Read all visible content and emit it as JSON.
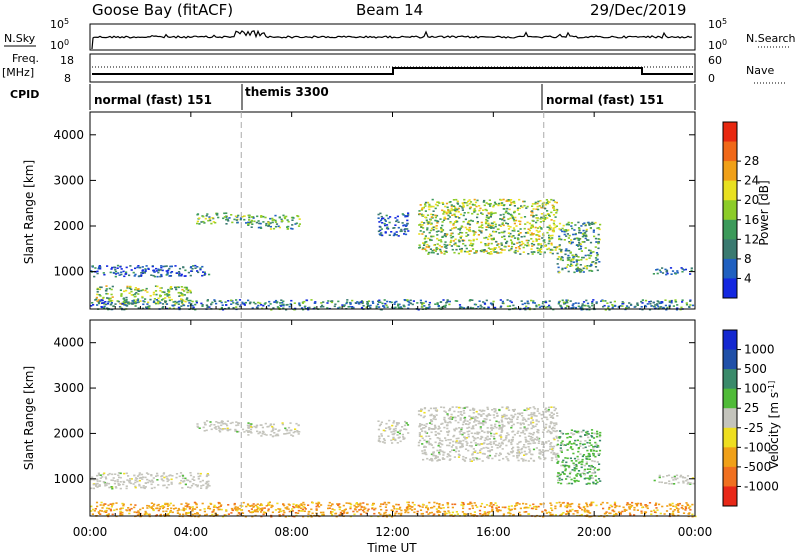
{
  "header": {
    "station": "Goose Bay (fitACF)",
    "beam": "Beam 14",
    "date": "29/Dec/2019"
  },
  "panel_labels": {
    "nsky": "N.Sky",
    "nsearch": "N.Search",
    "freq": "Freq.",
    "freq_unit": "[MHz]",
    "nave": "Nave",
    "cpid": "CPID"
  },
  "small_axes": {
    "noise_left": [
      "10^5",
      "10^0"
    ],
    "noise_right": [
      "10^5",
      "10^0"
    ],
    "freq_left": [
      "18",
      "8"
    ],
    "nave_right": [
      "60",
      "0"
    ]
  },
  "cpid_modes": [
    {
      "label": "normal (fast) 151",
      "start_hour": 0
    },
    {
      "label": "themis 3300",
      "start_hour": 6
    },
    {
      "label": "normal (fast) 151",
      "start_hour": 18
    }
  ],
  "colors": {
    "power_scale": [
      "#1428e0",
      "#2060c0",
      "#3a7a70",
      "#3c9a5a",
      "#8ccc28",
      "#e8e020",
      "#f0a018",
      "#f06818",
      "#e82810"
    ],
    "velocity_scale": [
      "#1428d0",
      "#2050a8",
      "#3a8a6a",
      "#50bb38",
      "#c4c4bc",
      "#eede20",
      "#f0a018",
      "#f07020",
      "#e82818"
    ]
  },
  "chart_data": [
    {
      "type": "heatmap",
      "title": "Goose Bay (fitACF) Beam 14 29/Dec/2019",
      "xlabel": "Time UT",
      "ylabel": "Slant Range [km]",
      "colorbar_label": "Power [dB]",
      "colorbar_ticks": [
        "4",
        "8",
        "12",
        "16",
        "20",
        "24",
        "28"
      ],
      "xlim": [
        "00:00",
        "24:00"
      ],
      "ylim": [
        180,
        4500
      ],
      "x_ticks": [
        "00:00",
        "04:00",
        "08:00",
        "12:00",
        "16:00",
        "20:00",
        "00:00"
      ],
      "y_ticks": [
        1000,
        2000,
        3000,
        4000
      ],
      "scatter_regions": [
        {
          "hours": [
            0.0,
            4.7
          ],
          "range_km": [
            900,
            1150
          ],
          "power_db": 6
        },
        {
          "hours": [
            0.2,
            4.0
          ],
          "range_km": [
            300,
            700
          ],
          "power_db": 16
        },
        {
          "hours": [
            4.2,
            6.4
          ],
          "range_km": [
            2050,
            2300
          ],
          "power_db": 12
        },
        {
          "hours": [
            6.2,
            8.3
          ],
          "range_km": [
            1950,
            2250
          ],
          "power_db": 10
        },
        {
          "hours": [
            11.4,
            12.6
          ],
          "range_km": [
            1800,
            2300
          ],
          "power_db": 6
        },
        {
          "hours": [
            13.0,
            18.5
          ],
          "range_km": [
            1400,
            2600
          ],
          "power_db": 14
        },
        {
          "hours": [
            18.5,
            20.2
          ],
          "range_km": [
            1000,
            2100
          ],
          "power_db": 10
        },
        {
          "hours": [
            22.3,
            23.9
          ],
          "range_km": [
            950,
            1100
          ],
          "power_db": 6
        },
        {
          "hours": [
            0.0,
            24.0
          ],
          "range_km": [
            180,
            400
          ],
          "power_db": 8
        }
      ]
    },
    {
      "type": "heatmap",
      "xlabel": "Time UT",
      "ylabel": "Slant Range [km]",
      "colorbar_label": "Velocity [m s^-1]",
      "colorbar_ticks": [
        "1000",
        "500",
        "100",
        "25",
        "-25",
        "-100",
        "-500",
        "-1000"
      ],
      "xlim": [
        "00:00",
        "24:00"
      ],
      "ylim": [
        180,
        4500
      ],
      "x_ticks": [
        "00:00",
        "04:00",
        "08:00",
        "12:00",
        "16:00",
        "20:00",
        "00:00"
      ],
      "y_ticks": [
        1000,
        2000,
        3000,
        4000
      ],
      "scatter_regions": [
        {
          "hours": [
            0.0,
            4.7
          ],
          "range_km": [
            800,
            1150
          ],
          "velocity": 0
        },
        {
          "hours": [
            4.2,
            6.4
          ],
          "range_km": [
            2050,
            2300
          ],
          "velocity": 0
        },
        {
          "hours": [
            6.2,
            8.3
          ],
          "range_km": [
            1950,
            2250
          ],
          "velocity": 0
        },
        {
          "hours": [
            11.4,
            12.6
          ],
          "range_km": [
            1800,
            2300
          ],
          "velocity": 0
        },
        {
          "hours": [
            13.0,
            18.5
          ],
          "range_km": [
            1400,
            2600
          ],
          "velocity": 0
        },
        {
          "hours": [
            18.5,
            20.2
          ],
          "range_km": [
            900,
            2100
          ],
          "velocity": 120
        },
        {
          "hours": [
            22.3,
            23.9
          ],
          "range_km": [
            900,
            1100
          ],
          "velocity": 0
        },
        {
          "hours": [
            0.0,
            24.0
          ],
          "range_km": [
            180,
            500
          ],
          "velocity": -150
        }
      ]
    }
  ]
}
